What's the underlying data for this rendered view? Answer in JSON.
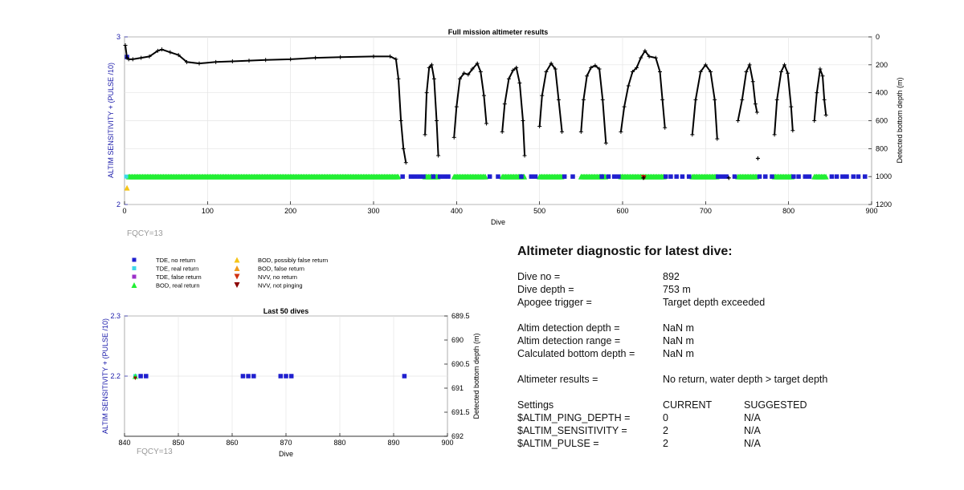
{
  "colors": {
    "tde_no_return": "#1f1fcf",
    "tde_real_return": "#3fd8e8",
    "tde_false_return": "#9b30c8",
    "bod_real_return": "#22ee33",
    "bod_possibly_false": "#f5c518",
    "bod_false": "#f09a1a",
    "nvv_no_return": "#d03010",
    "nvv_not_pinging": "#8b0000",
    "depth_line": "#000000",
    "left_axis": "#1a1aaa"
  },
  "chart_data": [
    {
      "type": "scatter",
      "title": "Full mission altimeter results",
      "xlabel": "Dive",
      "ylabel_left": "ALTIM SENSITIVITY + (PULSE /10)",
      "ylabel_right": "Detected bottom depth (m)",
      "xlim": [
        0,
        900
      ],
      "xticks": [
        0,
        100,
        200,
        300,
        400,
        500,
        600,
        700,
        800,
        900
      ],
      "ylim_left": [
        2,
        3
      ],
      "yticks_left": [
        2,
        3
      ],
      "ylim_right": [
        0,
        1200
      ],
      "yticks_right": [
        0,
        200,
        400,
        600,
        800,
        1000,
        1200
      ],
      "right_axis_reversed": true,
      "grid": true,
      "annotation": "FQCY=13",
      "depth_series": {
        "name": "Detected bottom depth",
        "segments": [
          [
            [
              1,
              60
            ],
            [
              3,
              150
            ],
            [
              5,
              160
            ],
            [
              10,
              160
            ],
            [
              20,
              150
            ],
            [
              30,
              140
            ],
            [
              40,
              100
            ],
            [
              45,
              90
            ],
            [
              55,
              110
            ],
            [
              65,
              130
            ],
            [
              75,
              180
            ],
            [
              90,
              190
            ],
            [
              110,
              180
            ],
            [
              130,
              175
            ],
            [
              150,
              170
            ],
            [
              170,
              165
            ],
            [
              200,
              160
            ],
            [
              230,
              150
            ],
            [
              260,
              145
            ],
            [
              300,
              140
            ],
            [
              320,
              140
            ],
            [
              327,
              160
            ],
            [
              330,
              300
            ],
            [
              333,
              600
            ],
            [
              336,
              800
            ],
            [
              339,
              900
            ]
          ],
          [
            [
              362,
              700
            ],
            [
              364,
              400
            ],
            [
              367,
              220
            ],
            [
              370,
              200
            ],
            [
              373,
              300
            ],
            [
              376,
              600
            ],
            [
              378,
              850
            ]
          ],
          [
            [
              397,
              720
            ],
            [
              400,
              500
            ],
            [
              404,
              300
            ],
            [
              409,
              260
            ],
            [
              414,
              270
            ],
            [
              419,
              230
            ],
            [
              425,
              190
            ],
            [
              429,
              250
            ],
            [
              433,
              420
            ],
            [
              436,
              620
            ]
          ],
          [
            [
              455,
              680
            ],
            [
              458,
              480
            ],
            [
              463,
              300
            ],
            [
              468,
              240
            ],
            [
              472,
              220
            ],
            [
              476,
              330
            ],
            [
              480,
              600
            ],
            [
              482,
              850
            ]
          ],
          [
            [
              500,
              640
            ],
            [
              503,
              420
            ],
            [
              508,
              250
            ],
            [
              514,
              190
            ],
            [
              519,
              230
            ],
            [
              523,
              450
            ],
            [
              527,
              680
            ]
          ],
          [
            [
              550,
              680
            ],
            [
              553,
              450
            ],
            [
              557,
              280
            ],
            [
              562,
              220
            ],
            [
              567,
              205
            ],
            [
              572,
              230
            ],
            [
              576,
              450
            ],
            [
              580,
              760
            ]
          ],
          [
            [
              598,
              680
            ],
            [
              602,
              500
            ],
            [
              607,
              350
            ],
            [
              612,
              250
            ],
            [
              617,
              220
            ],
            [
              622,
              150
            ],
            [
              627,
              100
            ],
            [
              632,
              140
            ],
            [
              640,
              150
            ],
            [
              645,
              250
            ],
            [
              648,
              450
            ],
            [
              651,
              650
            ]
          ],
          [
            [
              684,
              700
            ],
            [
              688,
              450
            ],
            [
              694,
              250
            ],
            [
              700,
              200
            ],
            [
              706,
              250
            ],
            [
              711,
              450
            ],
            [
              714,
              730
            ]
          ],
          [
            [
              739,
              600
            ],
            [
              744,
              450
            ],
            [
              749,
              250
            ],
            [
              753,
              200
            ],
            [
              757,
              320
            ],
            [
              760,
              480
            ],
            [
              762,
              540
            ]
          ],
          [
            [
              783,
              700
            ],
            [
              786,
              450
            ],
            [
              791,
              250
            ],
            [
              795,
              200
            ],
            [
              799,
              260
            ],
            [
              803,
              500
            ],
            [
              805,
              670
            ]
          ],
          [
            [
              831,
              600
            ],
            [
              834,
              400
            ],
            [
              838,
              230
            ],
            [
              841,
              280
            ],
            [
              843,
              450
            ],
            [
              845,
              560
            ]
          ]
        ],
        "isolated": [
          [
            625,
            1010
          ],
          [
            763,
            870
          ],
          [
            728,
            1010
          ]
        ]
      },
      "tde_no_return": [
        [
          3,
          2.88
        ],
        [
          335,
          1000
        ],
        [
          345,
          1000
        ],
        [
          350,
          1000
        ],
        [
          355,
          1000
        ],
        [
          360,
          1000
        ],
        [
          372,
          1000
        ],
        [
          380,
          1000
        ],
        [
          385,
          1000
        ],
        [
          390,
          1000
        ],
        [
          440,
          1000
        ],
        [
          450,
          1000
        ],
        [
          478,
          1000
        ],
        [
          490,
          1000
        ],
        [
          495,
          1000
        ],
        [
          530,
          1000
        ],
        [
          540,
          1000
        ],
        [
          575,
          1000
        ],
        [
          583,
          1000
        ],
        [
          590,
          1000
        ],
        [
          595,
          1000
        ],
        [
          652,
          1000
        ],
        [
          658,
          1000
        ],
        [
          665,
          1000
        ],
        [
          672,
          1000
        ],
        [
          680,
          1000
        ],
        [
          715,
          1000
        ],
        [
          720,
          1000
        ],
        [
          725,
          1000
        ],
        [
          735,
          1000
        ],
        [
          765,
          1000
        ],
        [
          772,
          1000
        ],
        [
          780,
          1000
        ],
        [
          806,
          1000
        ],
        [
          812,
          1000
        ],
        [
          820,
          1000
        ],
        [
          825,
          1000
        ],
        [
          852,
          1000
        ],
        [
          858,
          1000
        ],
        [
          865,
          1000
        ],
        [
          870,
          1000
        ],
        [
          878,
          1000
        ],
        [
          884,
          1000
        ],
        [
          892,
          1000
        ]
      ],
      "tde_real_return": [
        [
          2,
          1000
        ]
      ],
      "bod_real_return_ranges": [
        [
          5,
          330
        ],
        [
          362,
          378
        ],
        [
          397,
          436
        ],
        [
          455,
          482
        ],
        [
          500,
          527
        ],
        [
          550,
          580
        ],
        [
          598,
          651
        ],
        [
          684,
          714
        ],
        [
          739,
          762
        ],
        [
          783,
          805
        ],
        [
          831,
          845
        ]
      ],
      "bod_possibly_false": [
        [
          3,
          2.1
        ]
      ],
      "nvv_no_return": [
        [
          625,
          1005
        ]
      ],
      "nvv_not_pinging": [
        [
          626,
          1010
        ]
      ]
    },
    {
      "type": "scatter",
      "title": "Last 50 dives",
      "xlabel": "Dive",
      "ylabel_left": "ALTIM SENSITIVITY + (PULSE /10)",
      "ylabel_right": "Detected bottom depth (m)",
      "xlim": [
        840,
        900
      ],
      "xticks": [
        840,
        850,
        860,
        870,
        880,
        890,
        900
      ],
      "ylim_left": [
        2.1,
        2.3
      ],
      "yticks_left": [
        2.2,
        2.3
      ],
      "ylim_right": [
        689.5,
        692
      ],
      "yticks_right": [
        689.5,
        690,
        690.5,
        691,
        691.5,
        692
      ],
      "right_axis_reversed": true,
      "grid": true,
      "annotation": "FQCY=13",
      "tde_no_return": [
        [
          843,
          2.2
        ],
        [
          844,
          2.2
        ],
        [
          862,
          2.2
        ],
        [
          863,
          2.2
        ],
        [
          864,
          2.2
        ],
        [
          869,
          2.2
        ],
        [
          870,
          2.2
        ],
        [
          871,
          2.2
        ],
        [
          892,
          2.2
        ]
      ],
      "bod_real_return": [
        [
          842,
          2.2
        ]
      ],
      "nvv_not_pinging": [
        [
          842,
          2.199
        ]
      ],
      "tde_real_return": [
        [
          842,
          2.2
        ]
      ]
    }
  ],
  "legend": {
    "col1": [
      "TDE, no return",
      "TDE, real return",
      "TDE, false return",
      "BOD, real return"
    ],
    "col2": [
      "BOD, possibly false return",
      "BOD, false return",
      "NVV, no return",
      "NVV, not pinging"
    ]
  },
  "diagnostic": {
    "title": "Altimeter diagnostic for latest dive:",
    "rows1": [
      {
        "k": "Dive no =",
        "v": "892"
      },
      {
        "k": "Dive depth =",
        "v": "753 m"
      },
      {
        "k": "Apogee trigger =",
        "v": "Target depth exceeded"
      }
    ],
    "rows2": [
      {
        "k": "Altim detection depth =",
        "v": "NaN m"
      },
      {
        "k": "Altim detection range =",
        "v": "NaN m"
      },
      {
        "k": "Calculated bottom depth =",
        "v": "NaN m"
      }
    ],
    "rows3": [
      {
        "k": "Altimeter results =",
        "v": "No return, water depth > target depth"
      }
    ],
    "settings_header": {
      "k": "Settings",
      "v": "CURRENT",
      "v2": "SUGGESTED"
    },
    "settings": [
      {
        "k": "$ALTIM_PING_DEPTH =",
        "v": "0",
        "v2": "N/A"
      },
      {
        "k": "$ALTIM_SENSITIVITY =",
        "v": "2",
        "v2": "N/A"
      },
      {
        "k": "$ALTIM_PULSE =",
        "v": "2",
        "v2": "N/A"
      }
    ]
  }
}
